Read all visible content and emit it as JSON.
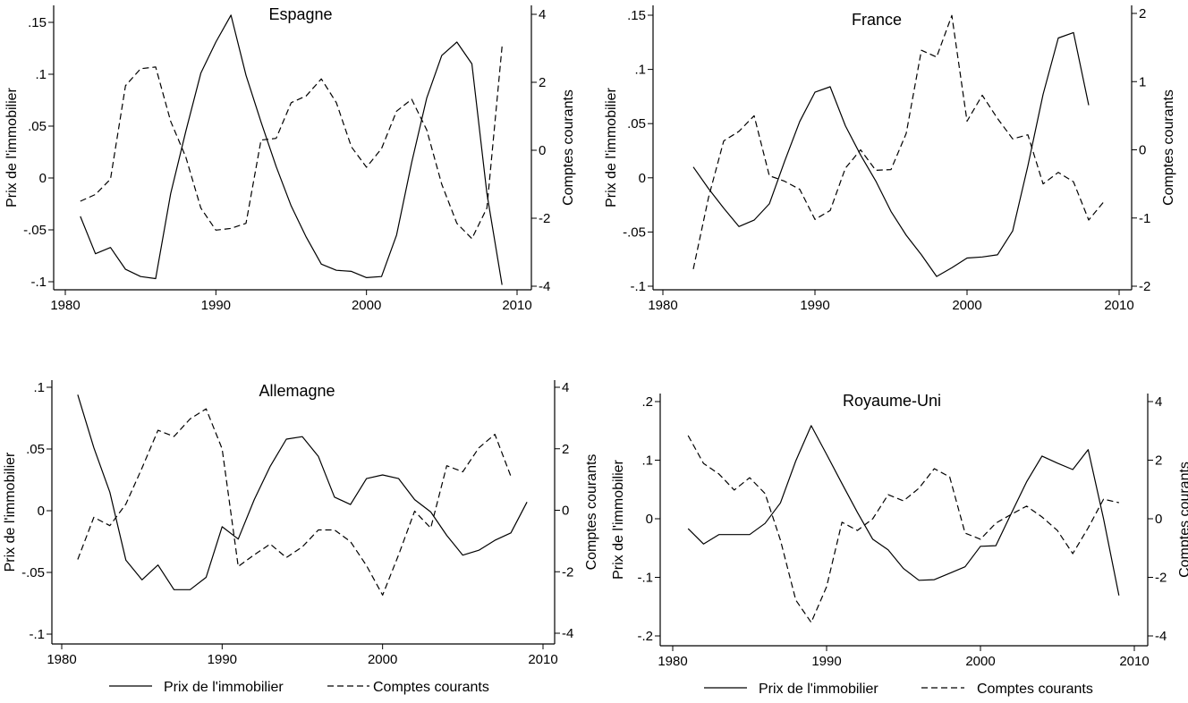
{
  "legend": {
    "solid": "Prix de l'immobilier",
    "dashed": "Comptes courants"
  },
  "chart_data": [
    {
      "type": "line",
      "title": "Espagne",
      "xlabel": "",
      "ylabel": "Prix de l'immobilier",
      "y2label": "Comptes courants",
      "xlim": [
        1980,
        2010
      ],
      "xticks": [
        "1980",
        "1990",
        "2000",
        "2010"
      ],
      "ylim": [
        -0.1,
        0.15
      ],
      "yticks": [
        ".15",
        ".1",
        ".05",
        "0",
        "-.05",
        "-.1"
      ],
      "ytick_values": [
        0.15,
        0.1,
        0.05,
        0,
        -0.05,
        -0.1
      ],
      "y2lim": [
        -4,
        4
      ],
      "y2ticks": [
        "4",
        "2",
        "0",
        "-2",
        "-4"
      ],
      "y2tick_values": [
        4,
        2,
        0,
        -2,
        -4
      ],
      "series": [
        {
          "name": "Prix de l'immobilier",
          "axis": "left",
          "style": "solid",
          "x0": 1981,
          "values": [
            -0.037,
            -0.073,
            -0.067,
            -0.088,
            -0.095,
            -0.097,
            -0.015,
            0.045,
            0.101,
            0.131,
            0.157,
            0.099,
            0.054,
            0.011,
            -0.027,
            -0.057,
            -0.083,
            -0.089,
            -0.09,
            -0.096,
            -0.095,
            -0.055,
            0.015,
            0.077,
            0.118,
            0.131,
            0.11,
            -0.015,
            -0.103
          ]
        },
        {
          "name": "Comptes courants",
          "axis": "right",
          "style": "dashed",
          "x0": 1981,
          "values": [
            -1.5,
            -1.3,
            -0.85,
            1.9,
            2.4,
            2.45,
            0.85,
            -0.2,
            -1.7,
            -2.35,
            -2.3,
            -2.15,
            0.3,
            0.35,
            1.4,
            1.6,
            2.1,
            1.4,
            0.1,
            -0.5,
            0.05,
            1.15,
            1.5,
            0.6,
            -1.0,
            -2.15,
            -2.6,
            -1.7,
            3.05
          ]
        }
      ]
    },
    {
      "type": "line",
      "title": "France",
      "xlabel": "",
      "ylabel": "Prix de l'immobilier",
      "y2label": "Comptes courants",
      "xlim": [
        1980,
        2010
      ],
      "xticks": [
        "1980",
        "1990",
        "2000",
        "2010"
      ],
      "ylim": [
        -0.1,
        0.15
      ],
      "yticks": [
        ".15",
        ".1",
        ".05",
        "0",
        "-.05",
        "-.1"
      ],
      "ytick_values": [
        0.15,
        0.1,
        0.05,
        0,
        -0.05,
        -0.1
      ],
      "y2lim": [
        -2,
        2
      ],
      "y2ticks": [
        "2",
        "1",
        "0",
        "-1",
        "-2"
      ],
      "y2tick_values": [
        2,
        1,
        0,
        -1,
        -2
      ],
      "series": [
        {
          "name": "Prix de l'immobilier",
          "axis": "left",
          "style": "solid",
          "x0": 1982,
          "values": [
            0.01,
            -0.01,
            -0.028,
            -0.045,
            -0.039,
            -0.024,
            0.015,
            0.052,
            0.079,
            0.084,
            0.048,
            0.021,
            -0.003,
            -0.031,
            -0.053,
            -0.071,
            -0.091,
            -0.083,
            -0.074,
            -0.073,
            -0.071,
            -0.049,
            0.011,
            0.077,
            0.129,
            0.134,
            0.067
          ]
        },
        {
          "name": "Comptes courants",
          "axis": "right",
          "style": "dashed",
          "x0": 1982,
          "values": [
            -1.75,
            -0.7,
            0.13,
            0.27,
            0.5,
            -0.38,
            -0.46,
            -0.58,
            -1.02,
            -0.89,
            -0.27,
            0.0,
            -0.3,
            -0.29,
            0.24,
            1.46,
            1.36,
            1.97,
            0.42,
            0.8,
            0.46,
            0.16,
            0.22,
            -0.5,
            -0.33,
            -0.47,
            -1.03,
            -0.76
          ]
        }
      ]
    },
    {
      "type": "line",
      "title": "Allemagne",
      "xlabel": "",
      "ylabel": "Prix de l'immobilier",
      "y2label": "Comptes courants",
      "xlim": [
        1980,
        2010
      ],
      "xticks": [
        "1980",
        "1990",
        "2000",
        "2010"
      ],
      "ylim": [
        -0.1,
        0.1
      ],
      "yticks": [
        ".1",
        ".05",
        "0",
        "-.05",
        "-.1"
      ],
      "ytick_values": [
        0.1,
        0.05,
        0,
        -0.05,
        -0.1
      ],
      "y2lim": [
        -4,
        4
      ],
      "y2ticks": [
        "4",
        "2",
        "0",
        "-2",
        "-4"
      ],
      "y2tick_values": [
        4,
        2,
        0,
        -2,
        -4
      ],
      "series": [
        {
          "name": "Prix de l'immobilier",
          "axis": "left",
          "style": "solid",
          "x0": 1981,
          "values": [
            0.094,
            0.051,
            0.015,
            -0.04,
            -0.056,
            -0.044,
            -0.064,
            -0.064,
            -0.054,
            -0.013,
            -0.023,
            0.009,
            0.036,
            0.058,
            0.06,
            0.044,
            0.011,
            0.005,
            0.026,
            0.029,
            0.026,
            0.009,
            -0.001,
            -0.02,
            -0.036,
            -0.032,
            -0.024,
            -0.018,
            0.007
          ]
        },
        {
          "name": "Comptes courants",
          "axis": "right",
          "style": "dashed",
          "x0": 1981,
          "values": [
            -1.6,
            -0.23,
            -0.5,
            0.2,
            1.37,
            2.6,
            2.4,
            2.97,
            3.3,
            2.0,
            -1.83,
            -1.45,
            -1.1,
            -1.54,
            -1.19,
            -0.64,
            -0.64,
            -1.02,
            -1.8,
            -2.76,
            -1.45,
            -0.03,
            -0.58,
            1.45,
            1.25,
            2.03,
            2.47,
            1.1
          ]
        }
      ]
    },
    {
      "type": "line",
      "title": "Royaume-Uni",
      "xlabel": "",
      "ylabel": "Prix de l'immobilier",
      "y2label": "Comptes courants",
      "xlim": [
        1980,
        2010
      ],
      "xticks": [
        "1980",
        "1990",
        "2000",
        "2010"
      ],
      "ylim": [
        -0.2,
        0.2
      ],
      "yticks": [
        ".2",
        ".1",
        "0",
        "-.1",
        "-.2"
      ],
      "ytick_values": [
        0.2,
        0.1,
        0,
        -0.1,
        -0.2
      ],
      "y2lim": [
        -4,
        4
      ],
      "y2ticks": [
        "4",
        "2",
        "0",
        "-2",
        "-4"
      ],
      "y2tick_values": [
        4,
        2,
        0,
        -2,
        -4
      ],
      "series": [
        {
          "name": "Prix de l'immobilier",
          "axis": "left",
          "style": "solid",
          "x0": 1981,
          "values": [
            -0.017,
            -0.043,
            -0.027,
            -0.027,
            -0.027,
            -0.008,
            0.027,
            0.099,
            0.159,
            0.11,
            0.06,
            0.011,
            -0.035,
            -0.053,
            -0.085,
            -0.105,
            -0.104,
            -0.093,
            -0.082,
            -0.047,
            -0.046,
            0.009,
            0.063,
            0.107,
            0.095,
            0.084,
            0.118,
            0.0,
            -0.131
          ]
        },
        {
          "name": "Comptes courants",
          "axis": "right",
          "style": "dashed",
          "x0": 1981,
          "values": [
            2.84,
            1.89,
            1.53,
            0.98,
            1.4,
            0.86,
            -0.73,
            -2.78,
            -3.54,
            -2.32,
            -0.12,
            -0.4,
            0.0,
            0.82,
            0.61,
            1.04,
            1.71,
            1.43,
            -0.49,
            -0.7,
            -0.15,
            0.15,
            0.43,
            0.06,
            -0.4,
            -1.19,
            -0.31,
            0.67,
            0.55
          ]
        }
      ]
    }
  ]
}
